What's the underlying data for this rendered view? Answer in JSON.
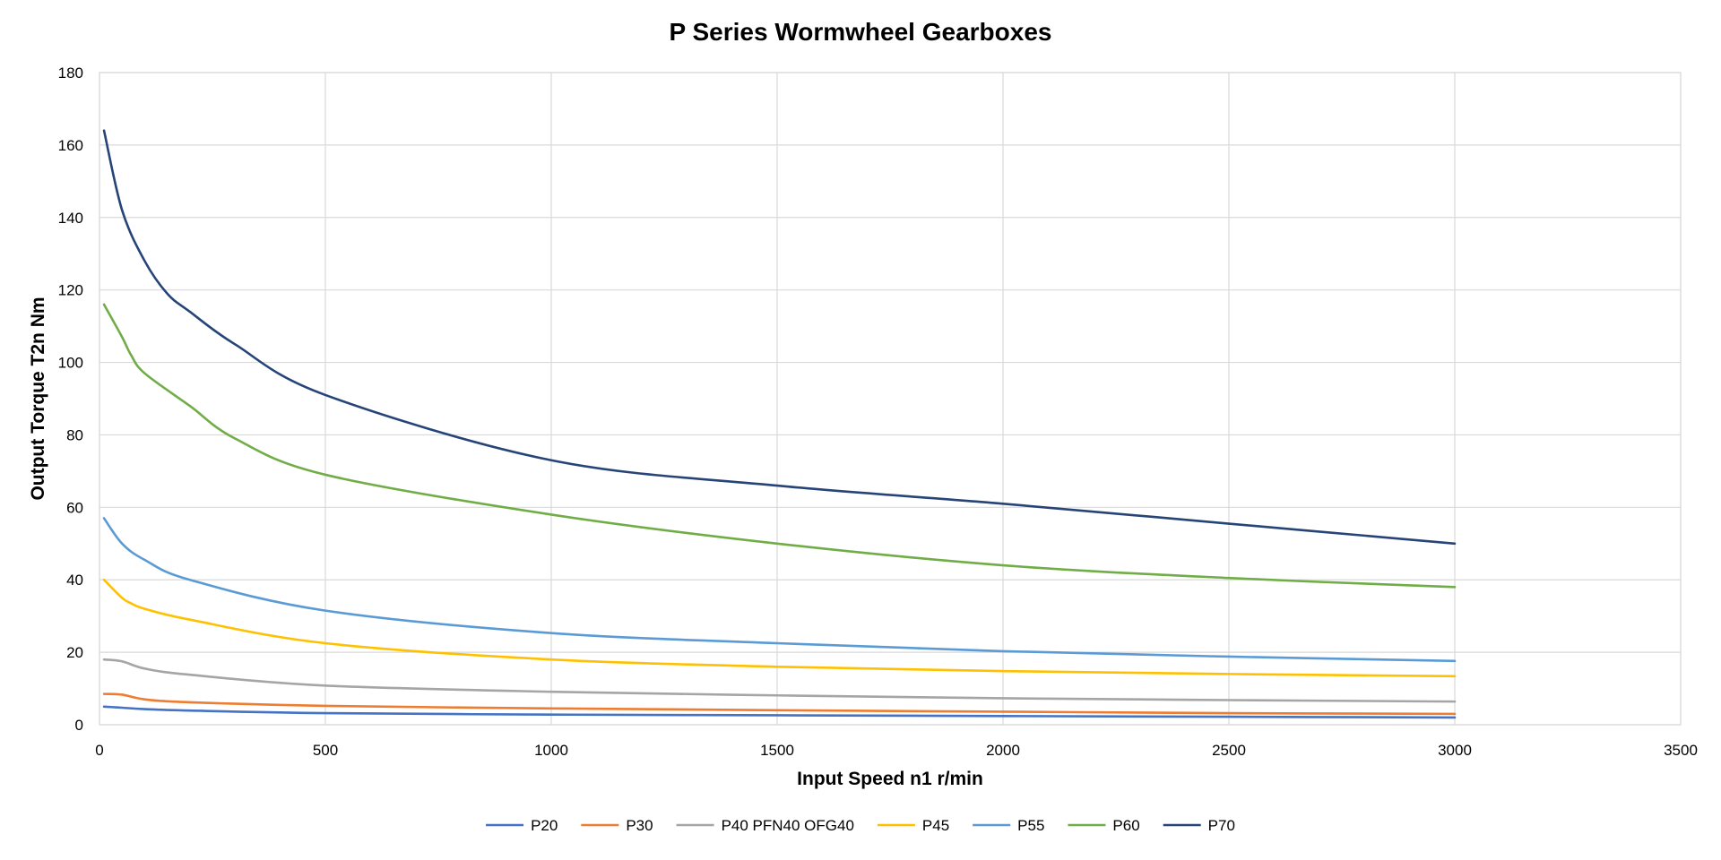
{
  "chart_data": {
    "type": "line",
    "title": "P Series Wormwheel Gearboxes",
    "xlabel": "Input Speed n1 r/min",
    "ylabel": "Output Torque T2n Nm",
    "xlim": [
      0,
      3500
    ],
    "ylim": [
      0,
      180
    ],
    "xticks": [
      0,
      500,
      1000,
      1500,
      2000,
      2500,
      3000,
      3500
    ],
    "yticks": [
      0,
      20,
      40,
      60,
      80,
      100,
      120,
      140,
      160,
      180
    ],
    "grid": true,
    "legend_position": "bottom",
    "series": [
      {
        "name": "P20",
        "color": "#4472C4",
        "x": [
          10,
          50,
          100,
          200,
          500,
          1000,
          1500,
          2000,
          2500,
          3000
        ],
        "y": [
          5,
          4.7,
          4.3,
          3.9,
          3.2,
          2.8,
          2.6,
          2.4,
          2.2,
          2
        ]
      },
      {
        "name": "P30",
        "color": "#ED7D31",
        "x": [
          10,
          50,
          100,
          200,
          500,
          1000,
          1500,
          2000,
          2500,
          3000
        ],
        "y": [
          8.5,
          8.3,
          7,
          6.2,
          5.2,
          4.5,
          4,
          3.6,
          3.2,
          3
        ]
      },
      {
        "name": "P40 PFN40 OFG40",
        "color": "#A5A5A5",
        "x": [
          10,
          50,
          100,
          200,
          500,
          1000,
          1500,
          2000,
          2500,
          3000
        ],
        "y": [
          18,
          17.5,
          15.5,
          13.8,
          10.8,
          9.1,
          8.1,
          7.3,
          6.8,
          6.4
        ]
      },
      {
        "name": "P45",
        "color": "#FFC000",
        "x": [
          10,
          50,
          70,
          100,
          200,
          500,
          1000,
          1500,
          2000,
          2500,
          3000
        ],
        "y": [
          40,
          35,
          33.5,
          32,
          29,
          22.5,
          18,
          16,
          14.8,
          14,
          13.4
        ]
      },
      {
        "name": "P55",
        "color": "#5B9BD5",
        "x": [
          10,
          50,
          100,
          200,
          500,
          1000,
          1500,
          2000,
          2500,
          3000
        ],
        "y": [
          57,
          50,
          45.5,
          40,
          31.5,
          25.3,
          22.5,
          20.3,
          18.8,
          17.6
        ]
      },
      {
        "name": "P60",
        "color": "#70AD47",
        "x": [
          10,
          50,
          70,
          100,
          200,
          300,
          500,
          1000,
          1500,
          2000,
          2500,
          3000
        ],
        "y": [
          116,
          107,
          102,
          97,
          88,
          79,
          69,
          58,
          50,
          44,
          40.5,
          38
        ]
      },
      {
        "name": "P70",
        "color": "#264478",
        "x": [
          10,
          50,
          100,
          150,
          200,
          300,
          500,
          1000,
          1500,
          2000,
          2500,
          3000
        ],
        "y": [
          164,
          142,
          128,
          119,
          114,
          105,
          91,
          73,
          66,
          61,
          55.5,
          50
        ]
      }
    ]
  }
}
